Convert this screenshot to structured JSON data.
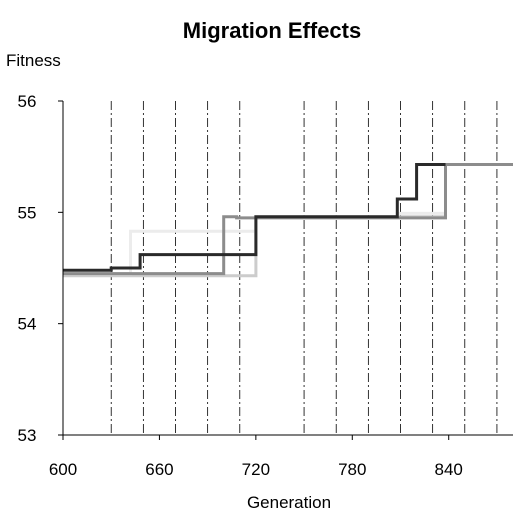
{
  "chart_data": {
    "type": "line",
    "title": "Migration Effects",
    "xlabel": "Generation",
    "ylabel": "Fitness",
    "xlim": [
      600,
      880
    ],
    "ylim": [
      53,
      56
    ],
    "x_ticks": [
      {
        "value": 600,
        "label": "600"
      },
      {
        "value": 660,
        "label": "660"
      },
      {
        "value": 720,
        "label": "720"
      },
      {
        "value": 780,
        "label": "780"
      },
      {
        "value": 840,
        "label": "840"
      }
    ],
    "y_ticks": [
      {
        "value": 53,
        "label": "53"
      },
      {
        "value": 54,
        "label": "54"
      },
      {
        "value": 55,
        "label": "55"
      },
      {
        "value": 56,
        "label": "56"
      }
    ],
    "migration_events": [
      630,
      650,
      670,
      690,
      710,
      750,
      770,
      790,
      810,
      830,
      850,
      870
    ],
    "grid": "vertical dash-dot lines at migration generations",
    "series": [
      {
        "color": "#2a2a2a",
        "points": [
          [
            600,
            54.48
          ],
          [
            630,
            54.48
          ],
          [
            630,
            54.5
          ],
          [
            648,
            54.5
          ],
          [
            648,
            54.62
          ],
          [
            720,
            54.62
          ],
          [
            720,
            54.96
          ],
          [
            808,
            54.96
          ],
          [
            808,
            55.12
          ],
          [
            820,
            55.12
          ],
          [
            820,
            55.43
          ],
          [
            838,
            55.43
          ]
        ]
      },
      {
        "color": "#8c8c8c",
        "points": [
          [
            600,
            54.45
          ],
          [
            700,
            54.45
          ],
          [
            700,
            54.96
          ],
          [
            708,
            54.96
          ],
          [
            708,
            54.95
          ],
          [
            838,
            54.95
          ],
          [
            838,
            55.43
          ],
          [
            880,
            55.43
          ]
        ]
      },
      {
        "color": "#ececec",
        "points": [
          [
            600,
            54.45
          ],
          [
            642,
            54.45
          ],
          [
            642,
            54.83
          ],
          [
            720,
            54.83
          ],
          [
            720,
            54.96
          ],
          [
            808,
            54.96
          ],
          [
            808,
            54.99
          ],
          [
            838,
            54.99
          ],
          [
            838,
            55.43
          ],
          [
            880,
            55.43
          ]
        ]
      },
      {
        "color": "#cccccc",
        "points": [
          [
            600,
            54.43
          ],
          [
            720,
            54.43
          ],
          [
            720,
            54.96
          ],
          [
            838,
            54.96
          ],
          [
            838,
            55.43
          ],
          [
            880,
            55.43
          ]
        ]
      }
    ]
  }
}
